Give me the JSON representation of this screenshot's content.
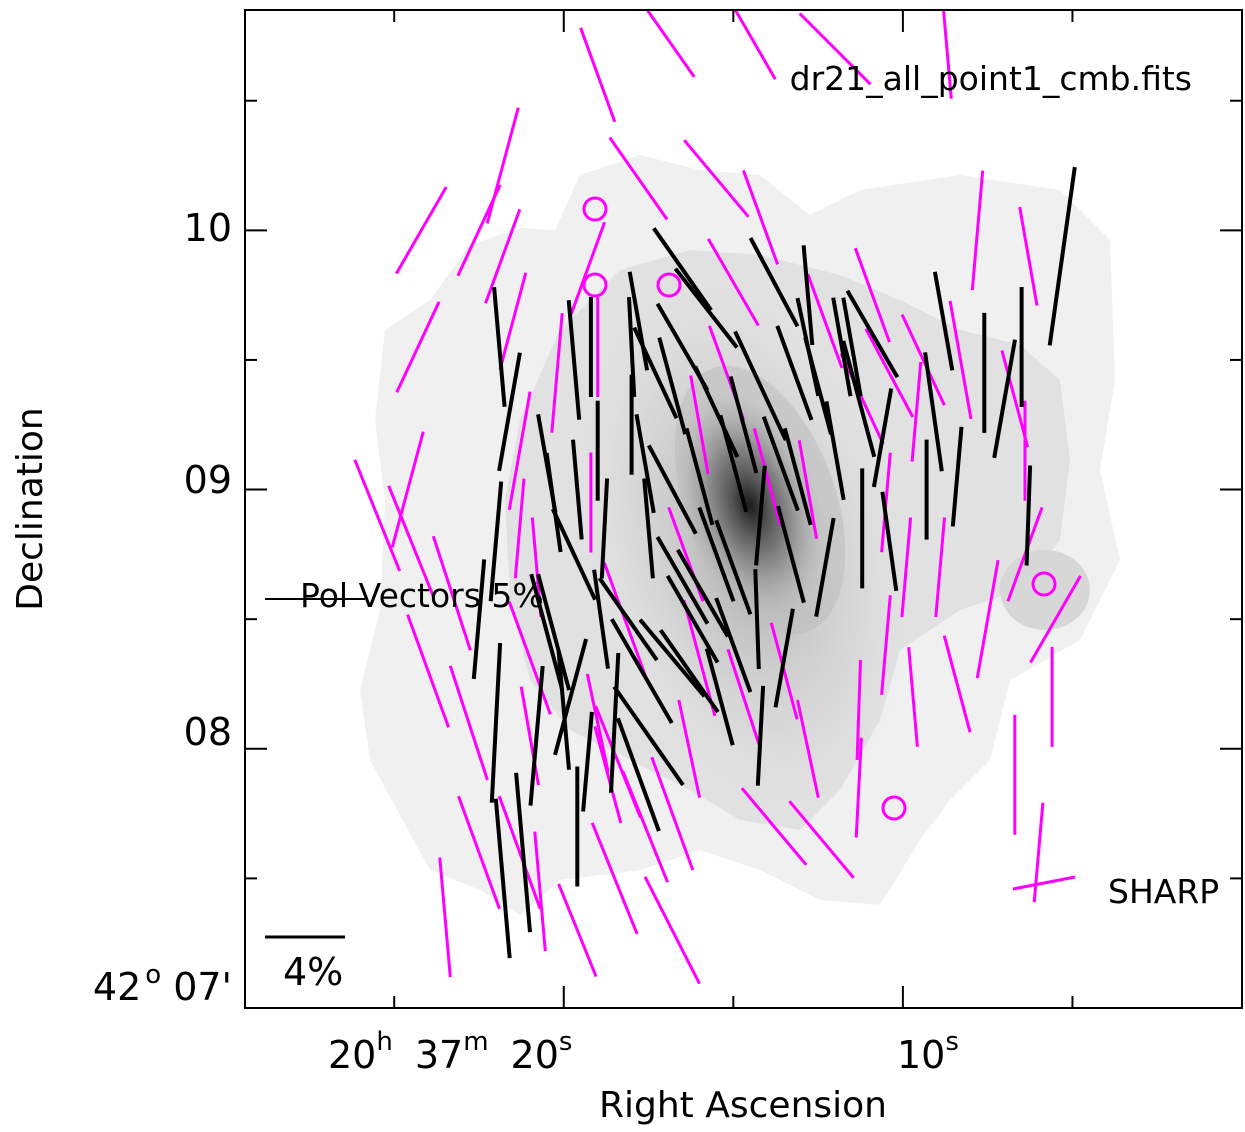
{
  "chart_data": {
    "type": "scatter",
    "title": "dr21_all_point1_cmb.fits",
    "xlabel": "Right Ascension",
    "ylabel": "Declination",
    "x_ticks": [
      {
        "value": 20.0,
        "prefix": "20",
        "h": "h",
        "mid": "37",
        "m": "m",
        "sec": "20",
        "s": "s"
      },
      {
        "value": 10.0,
        "sec": "10",
        "s": "s"
      }
    ],
    "y_ticks": [
      {
        "value": 10.0,
        "label": "10"
      },
      {
        "value": 9.0,
        "label": "09"
      },
      {
        "value": 8.0,
        "label": "08"
      },
      {
        "value": 7.0,
        "deg": "42",
        "degsup": "o",
        "label": "07'"
      }
    ],
    "xlim": [
      29.4,
      0.0
    ],
    "ylim": [
      7.0,
      10.85
    ],
    "ra_minor_step": 1.0,
    "dec_minor_step": 0.5,
    "legend": {
      "pol_label": "Pol Vectors 5%",
      "scale_label": "4%",
      "sharp_label": "SHARP"
    },
    "colors": {
      "sharp": "#ff00ff",
      "vector": "#000000",
      "frame": "#000000"
    },
    "intensity_peak": {
      "ra": 17.0,
      "dec": 8.85
    },
    "sharp_vectors": [
      [
        24.5,
        8.8,
        6,
        -22
      ],
      [
        24.3,
        9.55,
        5,
        25
      ],
      [
        24.2,
        10.0,
        5,
        30
      ],
      [
        21.8,
        10.25,
        6,
        15
      ],
      [
        21.5,
        9.65,
        5,
        15
      ],
      [
        21.3,
        9.15,
        6,
        10
      ],
      [
        21.0,
        8.05,
        5,
        -10
      ],
      [
        21.3,
        7.6,
        6,
        -20
      ],
      [
        20.7,
        7.45,
        6,
        -5
      ],
      [
        21.0,
        8.35,
        6,
        -20
      ],
      [
        21.3,
        8.85,
        5,
        5
      ],
      [
        22.5,
        10.0,
        5,
        25
      ],
      [
        21.8,
        9.9,
        5,
        20
      ],
      [
        19.3,
        9.85,
        5,
        20
      ],
      [
        19.2,
        8.95,
        5,
        0
      ],
      [
        19.0,
        8.1,
        5,
        -12
      ],
      [
        18.7,
        7.9,
        5,
        -15
      ],
      [
        19.6,
        7.3,
        5,
        -22
      ],
      [
        20.8,
        8.7,
        5,
        -5
      ],
      [
        19.0,
        9.55,
        5,
        0
      ],
      [
        18.5,
        7.5,
        6,
        -22
      ],
      [
        18.2,
        8.5,
        6,
        -20
      ],
      [
        17.6,
        7.7,
        6,
        -22
      ],
      [
        16.8,
        7.3,
        6,
        -27
      ],
      [
        16.8,
        7.75,
        6,
        -20
      ],
      [
        16.4,
        8.75,
        5,
        -20
      ],
      [
        16.0,
        8.35,
        6,
        -15
      ],
      [
        16.0,
        9.25,
        5,
        -10
      ],
      [
        16.3,
        8.0,
        5,
        -12
      ],
      [
        15.5,
        10.2,
        5,
        -40
      ],
      [
        15.0,
        9.8,
        5,
        -30
      ],
      [
        13.8,
        7.7,
        5,
        -40
      ],
      [
        14.0,
        9.05,
        5,
        -15
      ],
      [
        15.2,
        9.45,
        5,
        -20
      ],
      [
        14.2,
        10.05,
        5,
        -20
      ],
      [
        13.5,
        8.3,
        5,
        -15
      ],
      [
        14.7,
        8.2,
        5,
        -18
      ],
      [
        12.8,
        8.0,
        5,
        -12
      ],
      [
        12.4,
        7.65,
        5,
        -40
      ],
      [
        12.8,
        9.0,
        5,
        -10
      ],
      [
        12.3,
        9.65,
        5,
        -20
      ],
      [
        11.3,
        8.15,
        5,
        2
      ],
      [
        11.3,
        7.85,
        5,
        3
      ],
      [
        10.5,
        8.4,
        5,
        5
      ],
      [
        10.5,
        8.95,
        5,
        5
      ],
      [
        10.4,
        9.45,
        5,
        -28
      ],
      [
        11.2,
        9.35,
        5,
        -25
      ],
      [
        10.9,
        9.75,
        5,
        -20
      ],
      [
        9.7,
        8.2,
        5,
        -5
      ],
      [
        9.9,
        8.7,
        5,
        5
      ],
      [
        9.6,
        9.3,
        5,
        5
      ],
      [
        9.4,
        9.5,
        5,
        -25
      ],
      [
        8.9,
        8.7,
        5,
        5
      ],
      [
        8.4,
        8.25,
        5,
        -15
      ],
      [
        8.3,
        9.5,
        6,
        -10
      ],
      [
        7.5,
        8.5,
        6,
        10
      ],
      [
        6.7,
        7.9,
        6,
        0
      ],
      [
        6.4,
        8.75,
        5,
        20
      ],
      [
        6.4,
        9.15,
        5,
        0
      ],
      [
        6.3,
        9.9,
        5,
        -10
      ],
      [
        6.7,
        9.35,
        5,
        -15
      ],
      [
        7.8,
        10.0,
        6,
        5
      ],
      [
        8.7,
        10.7,
        5,
        -5
      ],
      [
        12.0,
        10.7,
        5,
        -45
      ],
      [
        14.5,
        10.75,
        5,
        -30
      ],
      [
        17.0,
        10.75,
        5,
        -35
      ],
      [
        17.8,
        10.2,
        5,
        -35
      ],
      [
        19.0,
        10.6,
        5,
        -20
      ],
      [
        23.3,
        8.6,
        6,
        -18
      ],
      [
        22.8,
        8.1,
        6,
        -18
      ],
      [
        22.5,
        7.6,
        6,
        -20
      ],
      [
        24.0,
        8.3,
        6,
        -20
      ],
      [
        23.5,
        7.35,
        6,
        -5
      ],
      [
        25.5,
        8.9,
        6,
        -22
      ],
      [
        24.6,
        9.0,
        6,
        15
      ],
      [
        20.2,
        9.45,
        6,
        5
      ],
      [
        18.4,
        7.95,
        6,
        -22
      ],
      [
        6.0,
        7.6,
        5,
        5
      ],
      [
        5.5,
        8.5,
        5,
        30
      ],
      [
        5.6,
        8.2,
        5,
        0
      ]
    ],
    "pol_vectors": [
      [
        22.0,
        8.1,
        8,
        3
      ],
      [
        21.8,
        7.5,
        8,
        -5
      ],
      [
        21.2,
        7.6,
        8,
        -5
      ],
      [
        20.8,
        8.05,
        7,
        5
      ],
      [
        19.8,
        8.2,
        6,
        15
      ],
      [
        20.3,
        8.45,
        6,
        -15
      ],
      [
        19.7,
        8.75,
        5,
        -25
      ],
      [
        18.5,
        8.1,
        7,
        3
      ],
      [
        18.1,
        8.5,
        5,
        -35
      ],
      [
        17.7,
        8.3,
        6,
        -30
      ],
      [
        17.5,
        8.05,
        6,
        -35
      ],
      [
        16.8,
        8.35,
        5,
        -40
      ],
      [
        16.3,
        8.3,
        5,
        -35
      ],
      [
        15.9,
        8.6,
        5,
        -30
      ],
      [
        15.4,
        8.2,
        5,
        -15
      ],
      [
        15.0,
        8.4,
        5,
        -20
      ],
      [
        14.3,
        8.5,
        5,
        -2
      ],
      [
        14.2,
        8.05,
        5,
        3
      ],
      [
        14.2,
        8.9,
        5,
        5
      ],
      [
        13.5,
        8.35,
        5,
        10
      ],
      [
        13.3,
        8.75,
        5,
        -15
      ],
      [
        13.1,
        9.05,
        5,
        -15
      ],
      [
        12.3,
        8.7,
        5,
        10
      ],
      [
        12.0,
        9.15,
        5,
        -10
      ],
      [
        11.8,
        9.55,
        5,
        -10
      ],
      [
        11.2,
        8.85,
        6,
        0
      ],
      [
        11.3,
        9.35,
        6,
        -15
      ],
      [
        10.9,
        9.6,
        5,
        -30
      ],
      [
        10.6,
        9.2,
        5,
        10
      ],
      [
        10.4,
        8.8,
        5,
        -8
      ],
      [
        9.3,
        9.0,
        5,
        0
      ],
      [
        9.1,
        9.3,
        6,
        -8
      ],
      [
        8.8,
        9.65,
        5,
        -10
      ],
      [
        8.4,
        9.05,
        5,
        5
      ],
      [
        7.6,
        9.45,
        6,
        0
      ],
      [
        7.0,
        9.35,
        6,
        10
      ],
      [
        6.3,
        8.9,
        5,
        2
      ],
      [
        6.5,
        9.55,
        6,
        0
      ],
      [
        5.3,
        9.9,
        9,
        8
      ],
      [
        19.3,
        7.95,
        5,
        5
      ],
      [
        19.6,
        7.7,
        6,
        0
      ],
      [
        17.8,
        7.9,
        6,
        -20
      ],
      [
        18.9,
        8.5,
        5,
        -8
      ],
      [
        18.8,
        8.85,
        5,
        3
      ],
      [
        19.0,
        9.15,
        5,
        0
      ],
      [
        19.6,
        9.0,
        5,
        -5
      ],
      [
        20.3,
        8.95,
        5,
        -8
      ],
      [
        19.7,
        9.5,
        6,
        -5
      ],
      [
        19.2,
        9.55,
        5,
        0
      ],
      [
        18.0,
        9.55,
        5,
        -3
      ],
      [
        18.0,
        9.25,
        5,
        0
      ],
      [
        17.6,
        9.1,
        5,
        -10
      ],
      [
        17.5,
        8.85,
        5,
        -5
      ],
      [
        16.8,
        9.0,
        5,
        -28
      ],
      [
        16.5,
        8.65,
        5,
        -30
      ],
      [
        15.5,
        8.75,
        5,
        -20
      ],
      [
        15.0,
        8.7,
        5,
        -20
      ],
      [
        17.8,
        9.65,
        5,
        -10
      ],
      [
        16.5,
        9.85,
        5,
        -35
      ],
      [
        16.8,
        9.4,
        5,
        -15
      ],
      [
        15.8,
        9.7,
        5,
        -38
      ],
      [
        15.5,
        9.3,
        5,
        -25
      ],
      [
        15.0,
        9.1,
        5,
        -15
      ],
      [
        14.2,
        9.4,
        6,
        -25
      ],
      [
        13.8,
        9.8,
        5,
        -28
      ],
      [
        13.2,
        9.45,
        5,
        -20
      ],
      [
        12.5,
        9.4,
        5,
        -15
      ],
      [
        12.8,
        9.75,
        5,
        -5
      ],
      [
        11.5,
        9.55,
        5,
        -10
      ],
      [
        16.5,
        9.55,
        5,
        -30
      ],
      [
        17.3,
        9.45,
        5,
        -25
      ],
      [
        16.0,
        9.05,
        5,
        -15
      ],
      [
        16.2,
        8.5,
        5,
        -30
      ],
      [
        14.7,
        9.25,
        5,
        -15
      ],
      [
        13.6,
        9.1,
        5,
        -20
      ],
      [
        12.8,
        9.55,
        5,
        -12
      ],
      [
        22.5,
        8.5,
        6,
        5
      ],
      [
        22.0,
        8.8,
        6,
        5
      ],
      [
        21.6,
        9.3,
        6,
        10
      ],
      [
        21.9,
        9.55,
        6,
        -5
      ],
      [
        20.5,
        9.1,
        5,
        -10
      ],
      [
        20.5,
        8.45,
        6,
        -15
      ],
      [
        20.0,
        8.15,
        6,
        -5
      ]
    ]
  }
}
